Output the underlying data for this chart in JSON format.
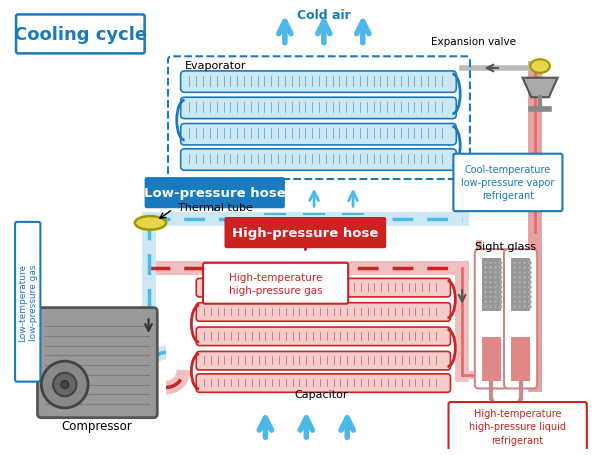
{
  "title": "Cooling cycle",
  "background_color": "#ffffff",
  "blue_color": "#4db8e8",
  "dark_blue": "#1a7abf",
  "red_color": "#e07070",
  "dark_red": "#cc2222",
  "gray_color": "#888888",
  "yellow_color": "#e8d44d",
  "labels": {
    "cold_air": "Cold air",
    "evaporator": "Evaporator",
    "expansion_valve": "Expansion valve",
    "cool_temp": "Cool-temperature\nlow-pressure vapor\nrefrigerant",
    "low_pressure_hose": "Low-pressure hose",
    "low_temp_gas": "Low-temperature\nlow-pressure gas",
    "thermal_tube": "Thermal tube",
    "high_pressure_hose": "High-pressure hose",
    "high_temp_gas": "High-temperature\nhigh-pressure gas",
    "capacitor": "Capacitor",
    "compressor": "Compressor",
    "sight_glass": "Sight glass",
    "high_temp_liquid": "High-temperature\nhigh-pressure liquid\nrefrigerant"
  }
}
